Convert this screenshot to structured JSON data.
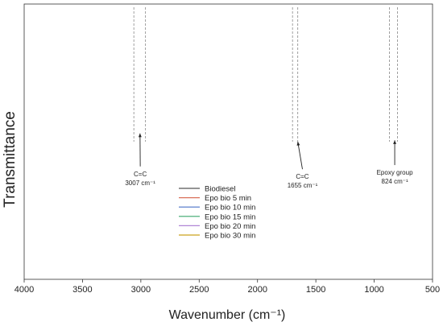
{
  "chart_data": {
    "type": "line",
    "xlabel": "Wavenumber (cm⁻¹)",
    "ylabel": "Transmittance",
    "xlim": [
      4000,
      500
    ],
    "x_reversed": true,
    "xticks": [
      4000,
      3500,
      3000,
      2500,
      2000,
      1500,
      1000,
      500
    ],
    "yticks_shown": false,
    "legend_position": "center",
    "series": [
      {
        "name": "Biodiesel",
        "color": "#555555",
        "offset": 0
      },
      {
        "name": "Epo bio 5 min",
        "color": "#d9705a",
        "offset": 1
      },
      {
        "name": "Epo bio 10 min",
        "color": "#4a72c9",
        "offset": 2
      },
      {
        "name": "Epo bio 15 min",
        "color": "#3aa66b",
        "offset": 3
      },
      {
        "name": "Epo bio 20 min",
        "color": "#b085d6",
        "offset": 4
      },
      {
        "name": "Epo bio 30 min",
        "color": "#c9a21c",
        "offset": 5
      }
    ],
    "marker_lines": [
      3060,
      2960,
      1700,
      1655,
      870,
      800
    ],
    "annotations": [
      {
        "lines": [
          "C=C",
          "3007 cm⁻¹"
        ],
        "arrow_from": [
          3005,
          0.59
        ],
        "arrow_to": [
          3007,
          0.47
        ]
      },
      {
        "lines": [
          "C=C",
          "1655 cm⁻¹"
        ],
        "arrow_from": [
          1615,
          0.6
        ],
        "arrow_to": [
          1655,
          0.5
        ]
      },
      {
        "lines": [
          "Epoxy group",
          "824 cm⁻¹"
        ],
        "arrow_from": [
          824,
          0.585
        ],
        "arrow_to": [
          824,
          0.495
        ]
      }
    ]
  }
}
